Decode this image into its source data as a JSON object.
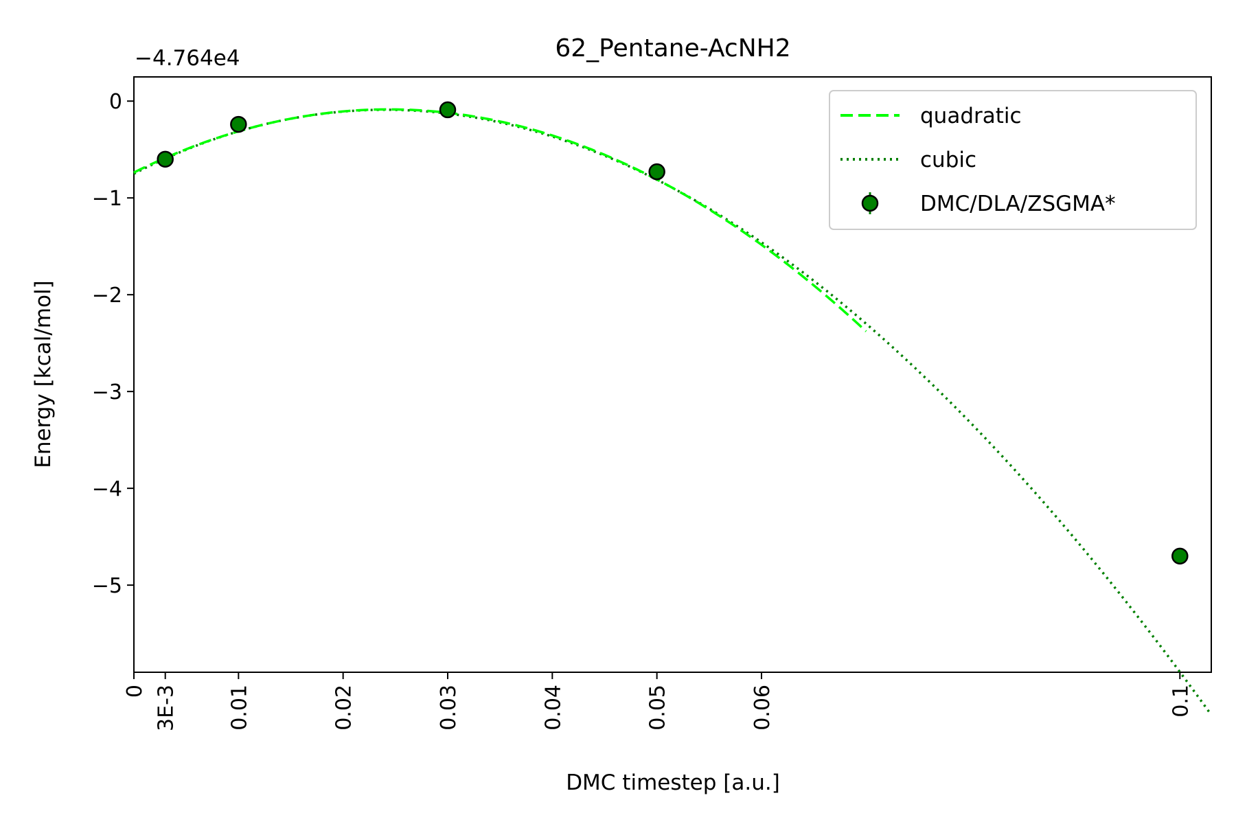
{
  "chart_data": {
    "type": "line",
    "title": "62_Pentane-AcNH2",
    "xlabel": "DMC timestep [a.u.]",
    "ylabel": "Energy [kcal/mol]",
    "y_offset_label": "−4.764e4",
    "xlim": [
      0,
      0.103
    ],
    "ylim": [
      -5.9,
      0.25
    ],
    "x_ticks": [
      {
        "value": 0,
        "label": "0"
      },
      {
        "value": 0.003,
        "label": "3E-3"
      },
      {
        "value": 0.01,
        "label": "0.01"
      },
      {
        "value": 0.02,
        "label": "0.02"
      },
      {
        "value": 0.03,
        "label": "0.03"
      },
      {
        "value": 0.04,
        "label": "0.04"
      },
      {
        "value": 0.05,
        "label": "0.05"
      },
      {
        "value": 0.06,
        "label": "0.06"
      },
      {
        "value": 0.1,
        "label": "0.1"
      }
    ],
    "y_ticks": [
      {
        "value": 0,
        "label": "0"
      },
      {
        "value": -1,
        "label": "−1"
      },
      {
        "value": -2,
        "label": "−2"
      },
      {
        "value": -3,
        "label": "−3"
      },
      {
        "value": -4,
        "label": "−4"
      },
      {
        "value": -5,
        "label": "−5"
      }
    ],
    "legend_position": "top-right",
    "series": [
      {
        "name": "quadratic",
        "style": "dashed",
        "color": "#00ff00",
        "fit": {
          "a": -0.7375,
          "b": 53.56,
          "c": -1100.0
        },
        "x_range": [
          0,
          0.07
        ]
      },
      {
        "name": "cubic",
        "style": "dotted",
        "color": "#008000",
        "fit": {
          "a": -0.7502,
          "b": 55.67,
          "c": -1204.9,
          "d": 1335.0
        },
        "x_range": [
          0,
          0.103
        ]
      },
      {
        "name": "DMC/DLA/ZSGMA*",
        "style": "errorbar-markers",
        "color": "#008000",
        "edge_color": "#000000",
        "x": [
          0.003,
          0.01,
          0.03,
          0.05,
          0.1
        ],
        "y": [
          -0.6,
          -0.24,
          -0.09,
          -0.73,
          -4.7
        ]
      }
    ]
  }
}
